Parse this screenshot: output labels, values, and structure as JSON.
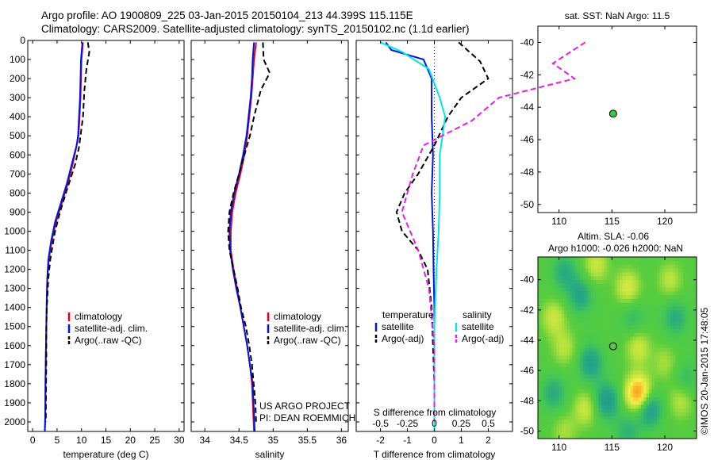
{
  "header": {
    "title_line1": "Argo profile: AO 1900809_225 03-Jan-2015 20150104_213 44.399S 115.115E",
    "title_line2": "Climatology: CARS2009. Satellite-adjusted climatology: synTS_20150102.nc (1.1d earlier)"
  },
  "colors": {
    "climatology": "#e8001a",
    "satellite": "#0014e6",
    "argo": "#000000",
    "salinity_sat": "#00e5e5",
    "salinity_argo": "#e61ee6",
    "marker": "#3cc83c"
  },
  "chart_data": [
    {
      "type": "line",
      "panel": "temperature",
      "xlabel": "temperature (deg C)",
      "ylabel": "",
      "xlim": [
        -1,
        31
      ],
      "ylim": [
        2050,
        0
      ],
      "xticks": [
        0,
        5,
        10,
        15,
        20,
        25,
        30
      ],
      "yticks": [
        0,
        100,
        200,
        300,
        400,
        500,
        600,
        700,
        800,
        900,
        1000,
        1100,
        1200,
        1300,
        1400,
        1500,
        1600,
        1700,
        1800,
        1900,
        2000
      ],
      "legend": [
        "climatology",
        "satellite-adj. clim.",
        "Argo(..raw -QC)"
      ],
      "series": [
        {
          "name": "climatology",
          "style": "solid",
          "x": [
            10.3,
            10.0,
            9.9,
            9.8,
            9.6,
            9.4,
            9.0,
            8.2,
            7.2,
            6.0,
            4.8,
            3.9,
            3.3,
            3.0,
            2.9,
            2.8,
            2.7,
            2.65,
            2.6,
            2.55,
            2.5
          ],
          "y": [
            10,
            100,
            200,
            300,
            400,
            500,
            550,
            650,
            750,
            850,
            950,
            1050,
            1150,
            1250,
            1350,
            1500,
            1650,
            1800,
            1900,
            2000,
            2050
          ]
        },
        {
          "name": "satellite-adj. clim.",
          "style": "solid",
          "x": [
            10.2,
            9.9,
            9.8,
            9.7,
            9.5,
            9.3,
            9.0,
            8.0,
            7.0,
            5.8,
            4.6,
            3.8,
            3.2,
            3.0,
            2.9,
            2.8,
            2.7,
            2.6,
            2.6,
            2.55,
            2.5
          ],
          "y": [
            10,
            100,
            200,
            300,
            400,
            500,
            550,
            650,
            750,
            850,
            950,
            1050,
            1150,
            1250,
            1350,
            1500,
            1650,
            1800,
            1900,
            2000,
            2050
          ]
        },
        {
          "name": "Argo(..raw -QC)",
          "style": "dashed",
          "x": [
            11.3,
            11.6,
            11.0,
            10.6,
            10.3,
            9.9,
            9.5,
            8.7,
            7.3,
            5.6,
            4.5,
            3.6,
            3.2,
            2.9,
            2.8,
            2.8,
            2.75,
            2.7,
            2.7
          ],
          "y": [
            10,
            60,
            150,
            260,
            400,
            480,
            560,
            650,
            760,
            900,
            1010,
            1150,
            1250,
            1400,
            1500,
            1650,
            1800,
            1950,
            2000
          ]
        }
      ]
    },
    {
      "type": "line",
      "panel": "salinity",
      "xlabel": "salinity",
      "ylabel": "",
      "xlim": [
        33.8,
        36.1
      ],
      "ylim": [
        2050,
        0
      ],
      "xticks": [
        34,
        34.5,
        35,
        35.5,
        36
      ],
      "legend": [
        "climatology",
        "satellite-adj. clim.",
        "Argo(..raw -QC)"
      ],
      "annotation": [
        "US ARGO PROJECT",
        "PI: DEAN ROEMMICH"
      ],
      "series": [
        {
          "name": "climatology",
          "style": "solid",
          "x": [
            34.75,
            34.72,
            34.7,
            34.68,
            34.65,
            34.62,
            34.58,
            34.52,
            34.45,
            34.4,
            34.38,
            34.38,
            34.42,
            34.47,
            34.52,
            34.57,
            34.62,
            34.66,
            34.69,
            34.72
          ],
          "y": [
            10,
            100,
            200,
            300,
            400,
            500,
            600,
            700,
            800,
            900,
            1000,
            1100,
            1200,
            1300,
            1400,
            1500,
            1600,
            1700,
            1800,
            2050
          ]
        },
        {
          "name": "satellite-adj. clim.",
          "style": "solid",
          "x": [
            34.72,
            34.7,
            34.69,
            34.67,
            34.64,
            34.61,
            34.56,
            34.5,
            34.43,
            34.38,
            34.36,
            34.37,
            34.41,
            34.46,
            34.52,
            34.57,
            34.62,
            34.66,
            34.7,
            34.73
          ],
          "y": [
            10,
            100,
            200,
            300,
            400,
            500,
            600,
            700,
            800,
            900,
            1000,
            1100,
            1200,
            1300,
            1400,
            1500,
            1600,
            1700,
            1800,
            2050
          ]
        },
        {
          "name": "Argo(..raw -QC)",
          "style": "dashed",
          "x": [
            34.85,
            34.86,
            34.95,
            34.82,
            34.72,
            34.66,
            34.58,
            34.5,
            34.42,
            34.36,
            34.34,
            34.36,
            34.42,
            34.48,
            34.53,
            34.6,
            34.65,
            34.69,
            34.74,
            34.75
          ],
          "y": [
            10,
            100,
            170,
            260,
            400,
            500,
            600,
            700,
            800,
            900,
            1000,
            1100,
            1200,
            1300,
            1400,
            1500,
            1600,
            1700,
            1900,
            2000
          ]
        }
      ]
    },
    {
      "type": "line",
      "panel": "difference",
      "xlabel": "T difference from climatology",
      "x2label": "S difference from climatology",
      "ylabel": "",
      "xlim": [
        -2.9,
        2.9
      ],
      "ylim": [
        2050,
        0
      ],
      "xticks": [
        -2,
        -1,
        0,
        1,
        2
      ],
      "x2ticks": [
        -0.5,
        -0.25,
        0,
        0.25,
        0.5
      ],
      "x2tick_labels": [
        "-0.5",
        "-0.25",
        "0",
        "0.25",
        "0.5"
      ],
      "legend_titles": [
        "temperature",
        "salinity"
      ],
      "legend": [
        "satellite",
        "Argo(-adj)",
        "satellite",
        "Argo(-adj)"
      ],
      "series": [
        {
          "name": "temperature satellite",
          "style": "solid",
          "x": [
            -1.8,
            -1.6,
            -0.4,
            -0.1,
            -0.1,
            -0.05,
            -0.1,
            -0.05,
            -0.03,
            0.0,
            0.0,
            0.0,
            0.0,
            0.0,
            0.0
          ],
          "y": [
            10,
            50,
            100,
            200,
            400,
            600,
            800,
            1000,
            1200,
            1400,
            1600,
            1800,
            1900,
            2000,
            2050
          ]
        },
        {
          "name": "temperature Argo(-adj)",
          "style": "dashed",
          "x": [
            0.9,
            1.7,
            2.0,
            1.0,
            0.5,
            0.0,
            -0.6,
            -1.1,
            -1.4,
            -1.2,
            -0.6,
            -0.25,
            -0.1,
            -0.05,
            0.0,
            0.0
          ],
          "y": [
            10,
            110,
            200,
            300,
            400,
            550,
            700,
            800,
            900,
            1000,
            1100,
            1200,
            1400,
            1600,
            1800,
            2000
          ]
        },
        {
          "name": "salinity satellite",
          "style": "solid",
          "x": [
            -0.5,
            -0.3,
            -0.05,
            0.05,
            0.1,
            0.05,
            0.05,
            0.04,
            0.02,
            0.0,
            0.0,
            0.0
          ],
          "y": [
            10,
            60,
            150,
            300,
            400,
            600,
            800,
            1000,
            1200,
            1500,
            1800,
            2050
          ]
        },
        {
          "name": "salinity Argo(-adj)",
          "style": "dashed",
          "x": [
            1.4,
            1.1,
            1.3,
            0.6,
            0.35,
            -0.1,
            -0.2,
            -0.3,
            -0.15,
            -0.05,
            0.0,
            0.0
          ],
          "y": [
            10,
            120,
            200,
            300,
            420,
            550,
            700,
            900,
            1100,
            1300,
            1600,
            2000
          ]
        }
      ]
    },
    {
      "type": "scatter",
      "panel": "map-sst",
      "title": "sat. SST: NaN Argo: 11.5",
      "xlim": [
        108,
        123
      ],
      "ylim": [
        -50.5,
        -39
      ],
      "xticks": [
        110,
        115,
        120
      ],
      "yticks": [
        -40,
        -42,
        -44,
        -46,
        -48,
        -50
      ],
      "xtick_labels": [
        "110",
        "115",
        "120"
      ],
      "ytick_labels": [
        "-40",
        "-42",
        "-44",
        "-46",
        "-48",
        "-50"
      ],
      "points": [
        {
          "x": 115.115,
          "y": -44.4
        }
      ]
    },
    {
      "type": "heatmap",
      "panel": "map-sla",
      "title_line1": "Altim. SLA: -0.06",
      "title_line2": "Argo h1000: -0.026 h2000: NaN",
      "xlim": [
        108,
        123
      ],
      "ylim": [
        -50.5,
        -38.5
      ],
      "xticks": [
        110,
        115,
        120
      ],
      "yticks": [
        -40,
        -42,
        -44,
        -46,
        -48,
        -50
      ],
      "xtick_labels": [
        "110",
        "115",
        "120"
      ],
      "ytick_labels": [
        "-40",
        "-42",
        "-44",
        "-46",
        "-48",
        "-50"
      ],
      "points": [
        {
          "x": 115.115,
          "y": -44.4
        }
      ],
      "blobs": [
        {
          "lon": 110.5,
          "lat": -39.5,
          "v": -0.6
        },
        {
          "lon": 113.5,
          "lat": -39.0,
          "v": 0.6
        },
        {
          "lon": 116.5,
          "lat": -40.5,
          "v": 0.7
        },
        {
          "lon": 120.5,
          "lat": -40.0,
          "v": 0.5
        },
        {
          "lon": 109.5,
          "lat": -42.5,
          "v": 0.6
        },
        {
          "lon": 112.0,
          "lat": -41.0,
          "v": -0.7
        },
        {
          "lon": 117.0,
          "lat": -42.5,
          "v": -0.4
        },
        {
          "lon": 121.0,
          "lat": -42.5,
          "v": -0.6
        },
        {
          "lon": 110.5,
          "lat": -44.5,
          "v": 0.5
        },
        {
          "lon": 113.0,
          "lat": -45.5,
          "v": -0.8
        },
        {
          "lon": 117.5,
          "lat": -44.5,
          "v": 0.6
        },
        {
          "lon": 120.0,
          "lat": -45.5,
          "v": 0.4
        },
        {
          "lon": 109.5,
          "lat": -47.5,
          "v": -0.6
        },
        {
          "lon": 112.5,
          "lat": -48.5,
          "v": 0.6
        },
        {
          "lon": 114.5,
          "lat": -48.0,
          "v": -0.9
        },
        {
          "lon": 117.5,
          "lat": -47.5,
          "v": 1.6
        },
        {
          "lon": 118.5,
          "lat": -48.5,
          "v": -1.0
        },
        {
          "lon": 121.5,
          "lat": -48.0,
          "v": 0.5
        },
        {
          "lon": 110.5,
          "lat": -50.0,
          "v": 0.4
        },
        {
          "lon": 116.5,
          "lat": -50.0,
          "v": -0.5
        },
        {
          "lon": 122.0,
          "lat": -46.5,
          "v": -0.4
        }
      ]
    }
  ],
  "credit": "©IMOS 20-Jan-2015 17:48:05"
}
